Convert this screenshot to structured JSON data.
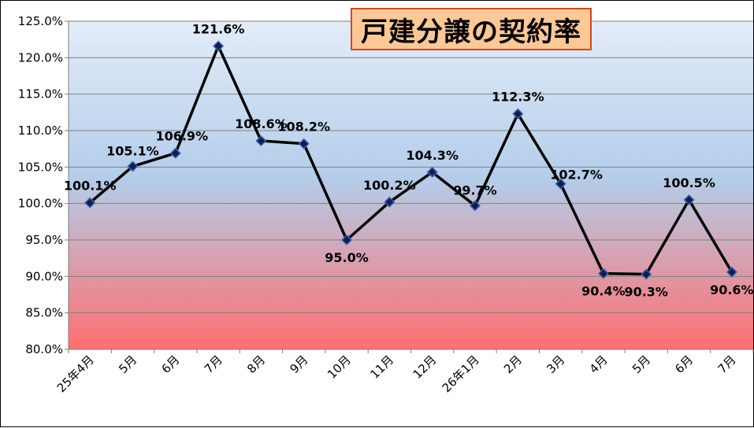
{
  "chart_data": {
    "type": "line",
    "title": "戸建分譲の契約率",
    "xlabel": "",
    "ylabel": "",
    "categories": [
      "25年4月",
      "5月",
      "6月",
      "7月",
      "8月",
      "9月",
      "10月",
      "11月",
      "12月",
      "26年1月",
      "2月",
      "3月",
      "4月",
      "5月",
      "6月",
      "7月"
    ],
    "values": [
      100.1,
      105.1,
      106.9,
      121.6,
      108.6,
      108.2,
      95.0,
      100.2,
      104.3,
      99.7,
      112.3,
      102.7,
      90.4,
      90.3,
      100.5,
      90.6
    ],
    "data_labels": [
      "100.1%",
      "105.1%",
      "106.9%",
      "121.6%",
      "108.6%",
      "108.2%",
      "95.0%",
      "100.2%",
      "104.3%",
      "99.7%",
      "112.3%",
      "102.7%",
      "90.4%",
      "90.3%",
      "100.5%",
      "90.6%"
    ],
    "ylim": [
      80,
      125
    ],
    "yticks": [
      80,
      85,
      90,
      95,
      100,
      105,
      110,
      115,
      120,
      125
    ],
    "ytick_labels": [
      "80.0%",
      "85.0%",
      "90.0%",
      "95.0%",
      "100.0%",
      "105.0%",
      "110.0%",
      "115.0%",
      "120.0%",
      "125.0%"
    ],
    "grid": true,
    "legend": "none",
    "colors": {
      "line": "#000000",
      "marker_fill": "#0f1f4a",
      "marker_edge": "#3c63b8",
      "bg_top": "#e4ecf8",
      "bg_mid": "#b3cdea",
      "bg_bottom": "#ff6f6f",
      "title_bg": "#fcc896",
      "title_border": "#d8461c"
    }
  }
}
